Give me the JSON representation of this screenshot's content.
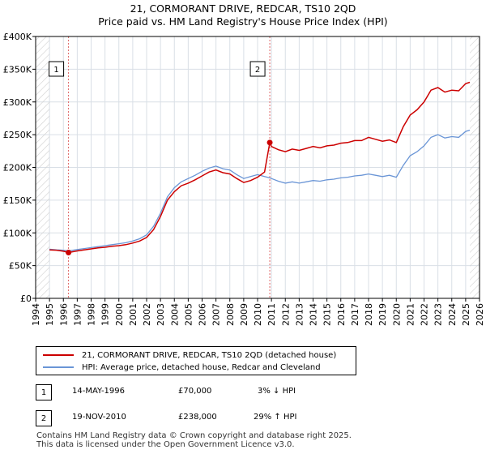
{
  "title": "21, CORMORANT DRIVE, REDCAR, TS10 2QD",
  "subtitle": "Price paid vs. HM Land Registry's House Price Index (HPI)",
  "colors": {
    "price": "#cc0000",
    "hpi": "#6a95d6",
    "grid": "#d9dfe6",
    "future_hatch": "#cfcfcf",
    "marker_line": "#e06666"
  },
  "chart_data": {
    "type": "line",
    "xlim": [
      1994,
      2026
    ],
    "ylim": [
      0,
      400000
    ],
    "x_ticks": [
      "1994",
      "1995",
      "1996",
      "1997",
      "1998",
      "1999",
      "2000",
      "2001",
      "2002",
      "2003",
      "2004",
      "2005",
      "2006",
      "2007",
      "2008",
      "2009",
      "2010",
      "2011",
      "2012",
      "2013",
      "2014",
      "2015",
      "2016",
      "2017",
      "2018",
      "2019",
      "2020",
      "2021",
      "2022",
      "2023",
      "2024",
      "2025",
      "2026"
    ],
    "y_ticks": [
      "£0",
      "£50K",
      "£100K",
      "£150K",
      "£200K",
      "£250K",
      "£300K",
      "£350K",
      "£400K"
    ],
    "data_start_year": 1995,
    "data_end_year": 2025.3,
    "series": [
      {
        "name": "21, CORMORANT DRIVE, REDCAR, TS10 2QD (detached house)",
        "x": [
          1995.0,
          1995.5,
          1996.0,
          1996.37,
          1997.0,
          1997.5,
          1998.0,
          1998.5,
          1999.0,
          1999.5,
          2000.0,
          2000.5,
          2001.0,
          2001.5,
          2002.0,
          2002.5,
          2003.0,
          2003.5,
          2004.0,
          2004.5,
          2005.0,
          2005.5,
          2006.0,
          2006.5,
          2007.0,
          2007.5,
          2008.0,
          2008.5,
          2009.0,
          2009.5,
          2010.0,
          2010.5,
          2010.88,
          2011.0,
          2011.5,
          2012.0,
          2012.5,
          2013.0,
          2013.5,
          2014.0,
          2014.5,
          2015.0,
          2015.5,
          2016.0,
          2016.5,
          2017.0,
          2017.5,
          2018.0,
          2018.5,
          2019.0,
          2019.5,
          2020.0,
          2020.5,
          2021.0,
          2021.5,
          2022.0,
          2022.5,
          2023.0,
          2023.5,
          2024.0,
          2024.5,
          2025.0,
          2025.3
        ],
        "y": [
          74000,
          73500,
          72000,
          70000,
          72500,
          74000,
          75500,
          77000,
          78000,
          79500,
          80500,
          82000,
          84500,
          87500,
          93000,
          105000,
          125000,
          150000,
          163000,
          172000,
          176000,
          181000,
          187000,
          193000,
          196000,
          192000,
          190000,
          183000,
          177000,
          180000,
          185000,
          193000,
          238000,
          232000,
          227000,
          224000,
          228000,
          226000,
          229000,
          232000,
          230000,
          233000,
          234000,
          237000,
          238000,
          241000,
          241000,
          246000,
          243000,
          240000,
          242000,
          238000,
          262000,
          280000,
          288000,
          300000,
          318000,
          322000,
          315000,
          318000,
          317000,
          328000,
          330000
        ]
      },
      {
        "name": "HPI: Average price, detached house, Redcar and Cleveland",
        "x": [
          1995.0,
          1995.5,
          1996.0,
          1996.37,
          1997.0,
          1997.5,
          1998.0,
          1998.5,
          1999.0,
          1999.5,
          2000.0,
          2000.5,
          2001.0,
          2001.5,
          2002.0,
          2002.5,
          2003.0,
          2003.5,
          2004.0,
          2004.5,
          2005.0,
          2005.5,
          2006.0,
          2006.5,
          2007.0,
          2007.5,
          2008.0,
          2008.5,
          2009.0,
          2009.5,
          2010.0,
          2010.5,
          2010.88,
          2011.0,
          2011.5,
          2012.0,
          2012.5,
          2013.0,
          2013.5,
          2014.0,
          2014.5,
          2015.0,
          2015.5,
          2016.0,
          2016.5,
          2017.0,
          2017.5,
          2018.0,
          2018.5,
          2019.0,
          2019.5,
          2020.0,
          2020.5,
          2021.0,
          2021.5,
          2022.0,
          2022.5,
          2023.0,
          2023.5,
          2024.0,
          2024.5,
          2025.0,
          2025.3
        ],
        "y": [
          75000,
          74000,
          73500,
          72500,
          74500,
          76000,
          77500,
          79000,
          80500,
          82000,
          83500,
          85000,
          87500,
          91000,
          97000,
          110000,
          130000,
          155000,
          169000,
          178000,
          183000,
          188000,
          194000,
          199000,
          202000,
          198000,
          196000,
          189000,
          183000,
          186000,
          189000,
          186000,
          184000,
          183000,
          179000,
          176000,
          178000,
          176000,
          178000,
          180000,
          179000,
          181000,
          182000,
          184000,
          185000,
          187000,
          188000,
          190000,
          188000,
          186000,
          188000,
          185000,
          203000,
          218000,
          224000,
          233000,
          246000,
          250000,
          245000,
          247000,
          246000,
          255000,
          257000
        ]
      }
    ],
    "annotations": [
      {
        "label": "1",
        "x": 1996.37,
        "y": 70000
      },
      {
        "label": "2",
        "x": 2010.88,
        "y": 238000
      }
    ]
  },
  "legend": {
    "price_label": "21, CORMORANT DRIVE, REDCAR, TS10 2QD (detached house)",
    "hpi_label": "HPI: Average price, detached house, Redcar and Cleveland"
  },
  "transactions": [
    {
      "num": "1",
      "date": "14-MAY-1996",
      "price": "£70,000",
      "change": "3% ↓ HPI"
    },
    {
      "num": "2",
      "date": "19-NOV-2010",
      "price": "£238,000",
      "change": "29% ↑ HPI"
    }
  ],
  "footer": {
    "line1": "Contains HM Land Registry data © Crown copyright and database right 2025.",
    "line2": "This data is licensed under the Open Government Licence v3.0."
  }
}
